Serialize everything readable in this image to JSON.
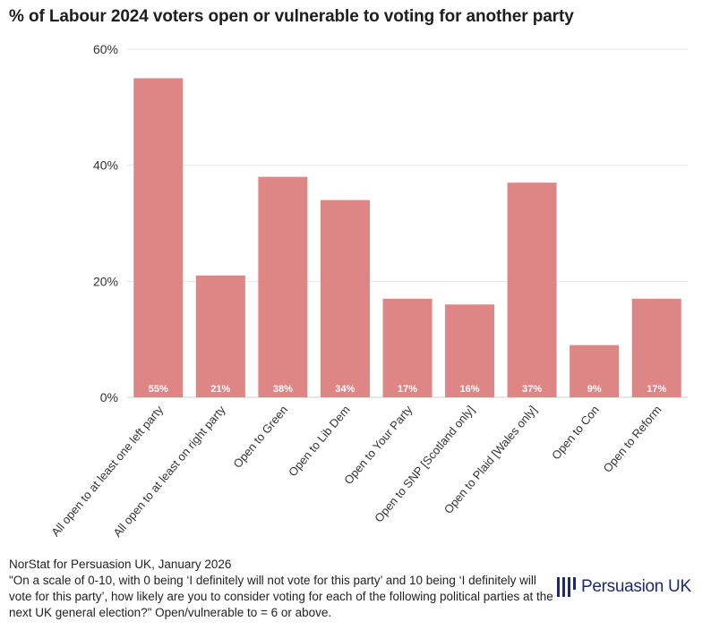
{
  "title": "% of Labour 2024 voters open or vulnerable to voting for another party",
  "chart_data": {
    "type": "bar",
    "categories": [
      "All open to at least one left party",
      "All open to at least on right party",
      "Open to Green",
      "Open to Lib Dem",
      "Open to Your Party",
      "Open to SNP [Scotland only]",
      "Open to Plaid [Wales only]",
      "Open to Con",
      "Open to Reform"
    ],
    "values": [
      55,
      21,
      38,
      34,
      17,
      16,
      37,
      9,
      17
    ],
    "value_labels": [
      "55%",
      "21%",
      "38%",
      "34%",
      "17%",
      "16%",
      "37%",
      "9%",
      "17%"
    ],
    "yticks": [
      0,
      20,
      40,
      60
    ],
    "ytick_labels": [
      "0%",
      "20%",
      "40%",
      "60%"
    ],
    "ylim": [
      0,
      60
    ],
    "grid": true,
    "bar_color": "#de8686",
    "xlabel": "",
    "ylabel": ""
  },
  "footer": {
    "source": "NorStat for Persuasion UK, January 2026",
    "note": "\"On a scale of 0-10, with 0 being ‘I definitely will not vote for this party’ and 10 being ‘I definitely will vote for this party’, how likely are you to consider voting for each of the following political parties at the next UK general election?\" Open/vulnerable to = 6 or above."
  },
  "logo": {
    "text": "Persuasion UK",
    "color": "#1f2a6b"
  }
}
